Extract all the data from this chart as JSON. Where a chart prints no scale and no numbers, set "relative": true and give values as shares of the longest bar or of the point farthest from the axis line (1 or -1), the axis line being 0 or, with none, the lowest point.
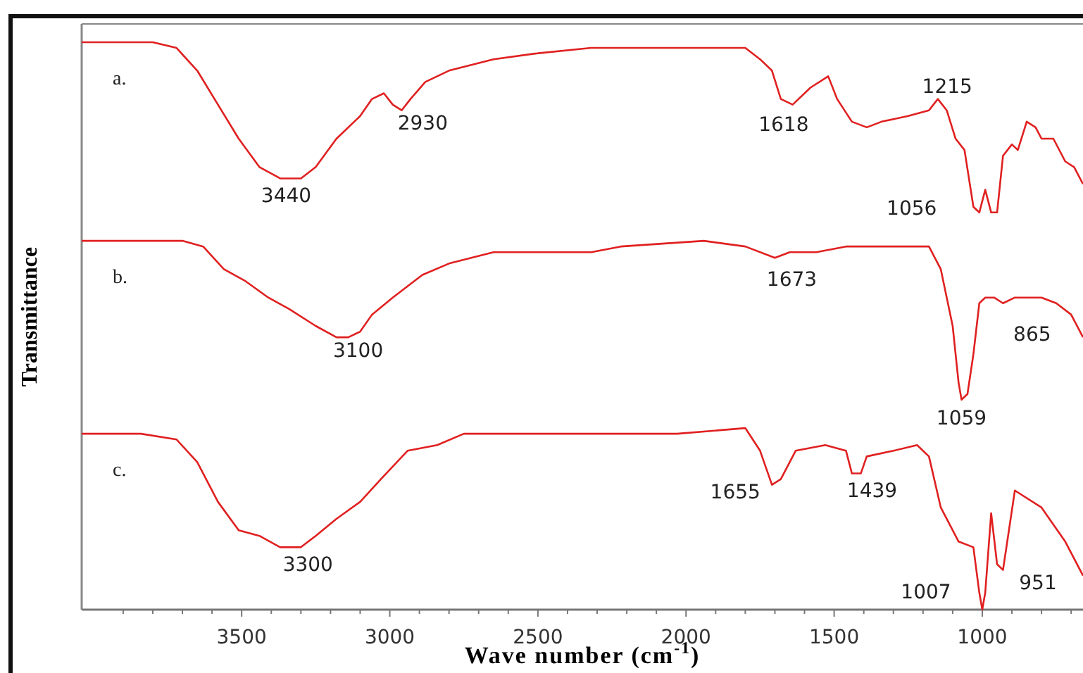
{
  "chart_data": {
    "type": "line",
    "relative": true,
    "xlabel": "Wave number (cm$^{-1}$)",
    "ylabel": "Transmittance",
    "xlim": [
      4040,
      660
    ],
    "xticks": [
      {
        "value": 3900,
        "label": null
      },
      {
        "value": 3800,
        "label": null
      },
      {
        "value": 3700,
        "label": null
      },
      {
        "value": 3600,
        "label": null
      },
      3500,
      {
        "value": 3400,
        "label": null
      },
      {
        "value": 3300,
        "label": null
      },
      {
        "value": 3200,
        "label": null
      },
      {
        "value": 3100,
        "label": null
      },
      3000,
      {
        "value": 2900,
        "label": null
      },
      {
        "value": 2800,
        "label": null
      },
      {
        "value": 2700,
        "label": null
      },
      {
        "value": 2600,
        "label": null
      },
      2500,
      {
        "value": 2400,
        "label": null
      },
      {
        "value": 2300,
        "label": null
      },
      {
        "value": 2200,
        "label": null
      },
      {
        "value": 2100,
        "label": null
      },
      2000,
      {
        "value": 1900,
        "label": null
      },
      {
        "value": 1800,
        "label": null
      },
      {
        "value": 1700,
        "label": null
      },
      {
        "value": 1600,
        "label": null
      },
      1500,
      {
        "value": 1400,
        "label": null
      },
      {
        "value": 1300,
        "label": null
      },
      {
        "value": 1200,
        "label": null
      },
      {
        "value": 1100,
        "label": null
      },
      1000,
      {
        "value": 900,
        "label": null
      },
      {
        "value": 800,
        "label": null
      },
      {
        "value": 700,
        "label": null
      }
    ],
    "marker": "none",
    "line_style": "solid",
    "grid": false,
    "series": [
      {
        "name": "a.",
        "color": "#e02020",
        "x": [
          4040,
          3890,
          3800,
          3720,
          3650,
          3580,
          3510,
          3440,
          3370,
          3300,
          3250,
          3180,
          3100,
          3060,
          3020,
          2990,
          2960,
          2930,
          2880,
          2800,
          2650,
          2510,
          2320,
          2220,
          2130,
          1800,
          1750,
          1710,
          1680,
          1640,
          1580,
          1520,
          1490,
          1440,
          1390,
          1340,
          1250,
          1180,
          1150,
          1120,
          1090,
          1060,
          1030,
          1010,
          990,
          970,
          950,
          930,
          900,
          880,
          850,
          820,
          800,
          760,
          720,
          690,
          660
        ],
        "values": [
          1.0,
          1.0,
          1.0,
          0.99,
          0.95,
          0.89,
          0.83,
          0.78,
          0.76,
          0.76,
          0.78,
          0.83,
          0.87,
          0.9,
          0.91,
          0.89,
          0.88,
          0.9,
          0.93,
          0.95,
          0.97,
          0.98,
          0.99,
          0.99,
          0.99,
          0.99,
          0.97,
          0.95,
          0.9,
          0.89,
          0.92,
          0.94,
          0.9,
          0.86,
          0.85,
          0.86,
          0.87,
          0.88,
          0.9,
          0.88,
          0.83,
          0.81,
          0.71,
          0.7,
          0.74,
          0.7,
          0.7,
          0.8,
          0.82,
          0.81,
          0.86,
          0.85,
          0.83,
          0.83,
          0.79,
          0.78,
          0.75
        ]
      },
      {
        "name": "b.",
        "color": "#e02020",
        "x": [
          4040,
          3840,
          3700,
          3630,
          3560,
          3490,
          3410,
          3340,
          3250,
          3180,
          3140,
          3100,
          3060,
          2990,
          2890,
          2800,
          2650,
          2510,
          2320,
          2220,
          1940,
          1800,
          1700,
          1650,
          1560,
          1460,
          1220,
          1180,
          1140,
          1100,
          1080,
          1070,
          1050,
          1030,
          1010,
          990,
          960,
          930,
          890,
          840,
          800,
          750,
          700,
          660
        ],
        "values": [
          0.65,
          0.65,
          0.65,
          0.64,
          0.6,
          0.58,
          0.55,
          0.53,
          0.5,
          0.48,
          0.48,
          0.49,
          0.52,
          0.55,
          0.59,
          0.61,
          0.63,
          0.63,
          0.63,
          0.64,
          0.65,
          0.64,
          0.62,
          0.63,
          0.63,
          0.64,
          0.64,
          0.64,
          0.6,
          0.5,
          0.4,
          0.37,
          0.38,
          0.45,
          0.54,
          0.55,
          0.55,
          0.54,
          0.55,
          0.55,
          0.55,
          0.54,
          0.52,
          0.48
        ]
      },
      {
        "name": "c.",
        "color": "#e02020",
        "x": [
          4040,
          3840,
          3720,
          3650,
          3580,
          3510,
          3440,
          3370,
          3300,
          3250,
          3180,
          3100,
          3030,
          2940,
          2840,
          2750,
          2510,
          2270,
          2030,
          1800,
          1750,
          1710,
          1680,
          1630,
          1530,
          1460,
          1440,
          1410,
          1390,
          1300,
          1220,
          1180,
          1140,
          1080,
          1030,
          1010,
          1000,
          990,
          970,
          950,
          930,
          890,
          800,
          720,
          660
        ],
        "values": [
          0.31,
          0.31,
          0.3,
          0.26,
          0.19,
          0.14,
          0.13,
          0.11,
          0.11,
          0.13,
          0.16,
          0.19,
          0.23,
          0.28,
          0.29,
          0.31,
          0.31,
          0.31,
          0.31,
          0.32,
          0.28,
          0.22,
          0.23,
          0.28,
          0.29,
          0.28,
          0.24,
          0.24,
          0.27,
          0.28,
          0.29,
          0.27,
          0.18,
          0.12,
          0.11,
          0.03,
          0.0,
          0.03,
          0.17,
          0.08,
          0.07,
          0.21,
          0.18,
          0.12,
          0.06
        ]
      }
    ],
    "annotations": [
      {
        "text": "3440",
        "x": 3340,
        "y": 0.76
      },
      {
        "text": "2930",
        "x": 2960,
        "y": 0.88
      },
      {
        "text": "1618",
        "x": 1680,
        "y": 0.9
      },
      {
        "text": "1215",
        "x": 1180,
        "y": 0.88
      },
      {
        "text": "1056",
        "x": 1010,
        "y": 0.7
      },
      {
        "text": "3100",
        "x": 3140,
        "y": 0.48
      },
      {
        "text": "1673",
        "x": 1700,
        "y": 0.62
      },
      {
        "text": "1059",
        "x": 1070,
        "y": 0.37
      },
      {
        "text": "865",
        "x": 860,
        "y": 0.55
      },
      {
        "text": "3300",
        "x": 3300,
        "y": 0.11
      },
      {
        "text": "1655",
        "x": 1710,
        "y": 0.22
      },
      {
        "text": "1439",
        "x": 1410,
        "y": 0.24
      },
      {
        "text": "1007",
        "x": 1000,
        "y": 0.0
      },
      {
        "text": "951",
        "x": 950,
        "y": 0.08
      }
    ]
  }
}
